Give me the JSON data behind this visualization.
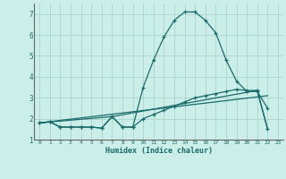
{
  "xlabel": "Humidex (Indice chaleur)",
  "xlim": [
    -0.5,
    23.5
  ],
  "ylim": [
    1,
    7.5
  ],
  "yticks": [
    1,
    2,
    3,
    4,
    5,
    6,
    7
  ],
  "xticks": [
    0,
    1,
    2,
    3,
    4,
    5,
    6,
    7,
    8,
    9,
    10,
    11,
    12,
    13,
    14,
    15,
    16,
    17,
    18,
    19,
    20,
    21,
    22,
    23
  ],
  "bg_color": "#cceee8",
  "grid_color": "#aad4ce",
  "line_color": "#1a6b6b",
  "series1_x": [
    0,
    1,
    2,
    3,
    4,
    5,
    6,
    7,
    8,
    9,
    10,
    11,
    12,
    13,
    14,
    15,
    16,
    17,
    18,
    19,
    20,
    21,
    22
  ],
  "series1_y": [
    1.8,
    1.85,
    1.6,
    1.6,
    1.6,
    1.6,
    1.55,
    2.1,
    1.6,
    1.6,
    3.5,
    4.8,
    5.9,
    6.7,
    7.1,
    7.1,
    6.7,
    6.1,
    4.8,
    3.8,
    3.3,
    3.3,
    2.5
  ],
  "series2_x": [
    0,
    1,
    2,
    3,
    4,
    5,
    6,
    7,
    8,
    9,
    10,
    11,
    12,
    13,
    14,
    15,
    16,
    17,
    18,
    19,
    20,
    21,
    22
  ],
  "series2_y": [
    1.8,
    1.85,
    1.6,
    1.6,
    1.6,
    1.6,
    1.55,
    2.1,
    1.6,
    1.6,
    2.0,
    2.2,
    2.4,
    2.6,
    2.8,
    3.0,
    3.1,
    3.2,
    3.3,
    3.4,
    3.35,
    3.35,
    1.5
  ],
  "series3_x": [
    0,
    7,
    21,
    22
  ],
  "series3_y": [
    1.8,
    2.1,
    3.35,
    1.5
  ],
  "series4_x": [
    0,
    22
  ],
  "series4_y": [
    1.8,
    3.1
  ]
}
